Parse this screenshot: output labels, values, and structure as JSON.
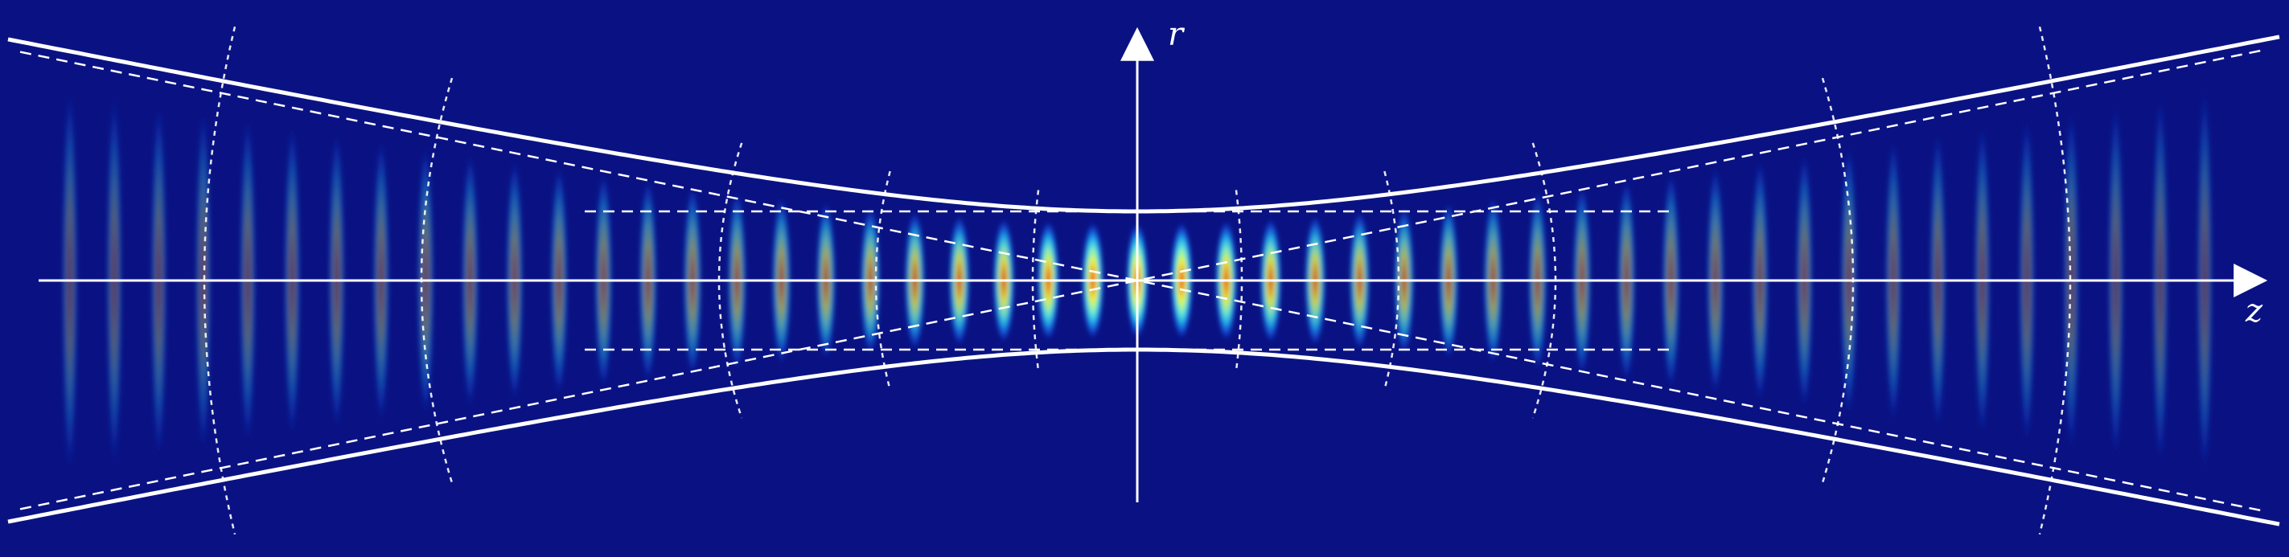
{
  "diagram": {
    "axes": {
      "horizontal_label": "z",
      "vertical_label": "r"
    },
    "beam": {
      "fringe_count": 49,
      "colormap": [
        "#0a1283",
        "#1750e6",
        "#1fb7f0",
        "#86f9c9",
        "#f7f51d",
        "#f69015",
        "#e71406"
      ]
    },
    "colors": {
      "background": "#0a1283",
      "lines": "#ffffff"
    }
  }
}
